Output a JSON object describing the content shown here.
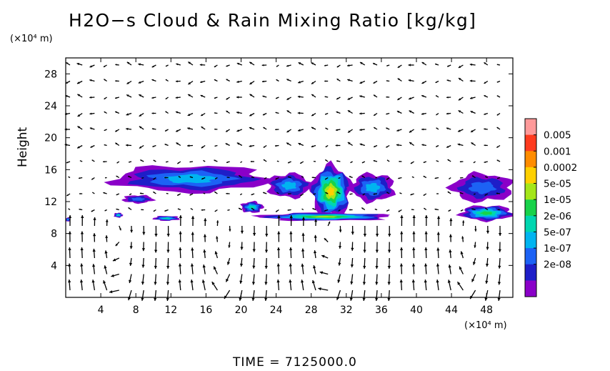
{
  "chart_data": {
    "type": "heatmap",
    "title": "H2O−s Cloud & Rain Mixing Ratio [kg/kg]",
    "ylabel": "Height",
    "y_unit": "(×10⁴ m)",
    "x_unit": "(×10⁴ m)",
    "xlim": [
      0,
      51
    ],
    "ylim": [
      0,
      30
    ],
    "x_ticks": [
      4,
      8,
      12,
      16,
      20,
      24,
      28,
      32,
      36,
      40,
      44,
      48
    ],
    "y_ticks": [
      4,
      8,
      12,
      16,
      20,
      24,
      28
    ],
    "colorbar": {
      "labels": [
        "0.005",
        "0.001",
        "0.0002",
        "5e-05",
        "1e-05",
        "2e-06",
        "5e-07",
        "1e-07",
        "2e-08"
      ],
      "colors": [
        "#ff9a9a",
        "#ff3b1f",
        "#ff8c00",
        "#ffd000",
        "#a4e61a",
        "#18d24a",
        "#00d6b0",
        "#00b4f0",
        "#1c62f5",
        "#1e1ec8",
        "#8a00c8"
      ]
    },
    "overlay": "wind vector arrows",
    "cloud_features": [
      {
        "x": [
          5.5,
          23.0
        ],
        "y": [
          13.2,
          16.5
        ],
        "peak": 3,
        "note": "upper anvil layer"
      },
      {
        "x": [
          23.0,
          28.0
        ],
        "y": [
          12.5,
          15.5
        ],
        "peak": 3
      },
      {
        "x": [
          28.0,
          32.5
        ],
        "y": [
          10.0,
          16.5
        ],
        "peak": 7,
        "note": "convective core"
      },
      {
        "x": [
          32.5,
          37.5
        ],
        "y": [
          12.0,
          15.5
        ],
        "peak": 3
      },
      {
        "x": [
          6.5,
          10.0
        ],
        "y": [
          11.8,
          12.8
        ],
        "peak": 2
      },
      {
        "x": [
          20.0,
          22.5
        ],
        "y": [
          10.6,
          12.0
        ],
        "peak": 4
      },
      {
        "x": [
          22.0,
          37.0
        ],
        "y": [
          9.6,
          10.6
        ],
        "peak": 6,
        "note": "low cloud layer"
      },
      {
        "x": [
          10.0,
          13.0
        ],
        "y": [
          9.6,
          10.2
        ],
        "peak": 4
      },
      {
        "x": [
          5.5,
          6.5
        ],
        "y": [
          10.0,
          10.6
        ],
        "peak": 4
      },
      {
        "x": [
          0.0,
          0.5
        ],
        "y": [
          9.5,
          10.0
        ],
        "peak": 3
      },
      {
        "x": [
          44.0,
          51.0
        ],
        "y": [
          12.0,
          15.5
        ],
        "peak": 2,
        "note": "right anvil"
      },
      {
        "x": [
          45.0,
          51.0
        ],
        "y": [
          9.6,
          11.5
        ],
        "peak": 5
      }
    ],
    "grid": false
  },
  "footer": {
    "time_label": "TIME  =  7125000.0"
  }
}
